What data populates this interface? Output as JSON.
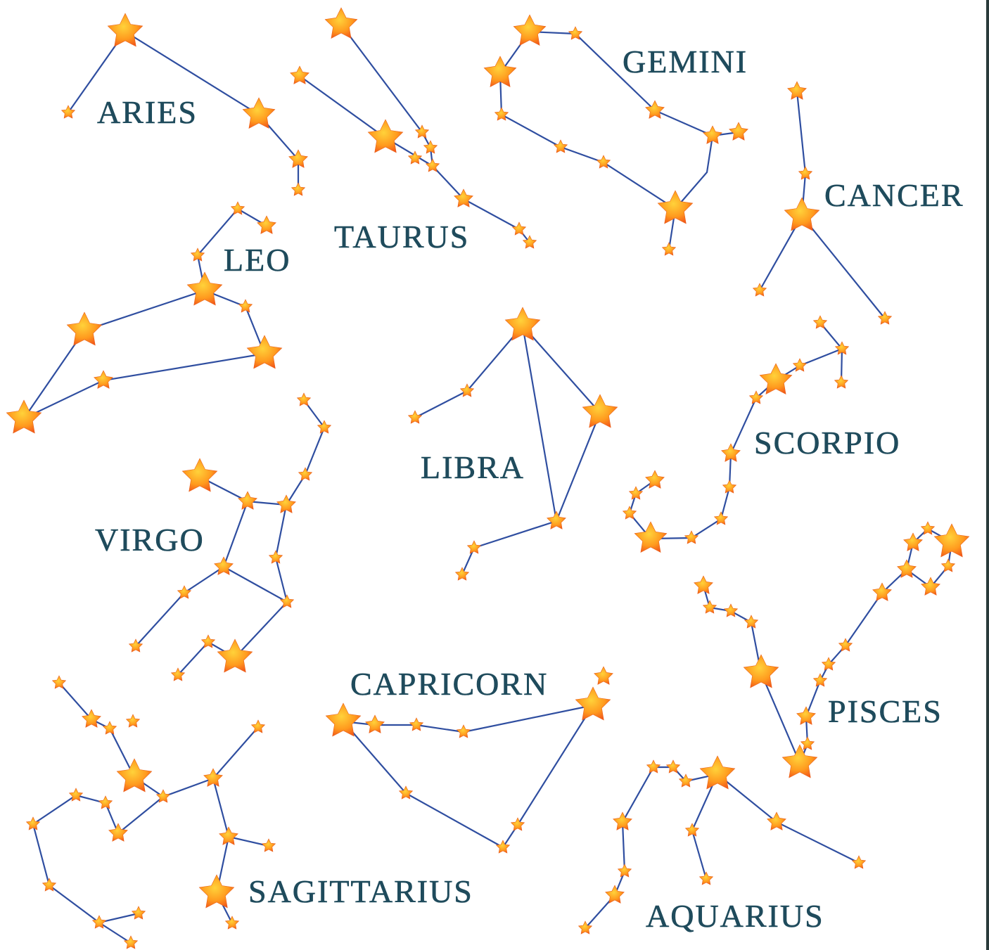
{
  "constellations": [
    {
      "name": "ARIES"
    },
    {
      "name": "TAURUS"
    },
    {
      "name": "GEMINI"
    },
    {
      "name": "CANCER"
    },
    {
      "name": "LEO"
    },
    {
      "name": "LIBRA"
    },
    {
      "name": "SCORPIO"
    },
    {
      "name": "VIRGO"
    },
    {
      "name": "CAPRICORN"
    },
    {
      "name": "PISCES"
    },
    {
      "name": "AQUARIUS"
    },
    {
      "name": "SAGITTARIUS"
    }
  ]
}
